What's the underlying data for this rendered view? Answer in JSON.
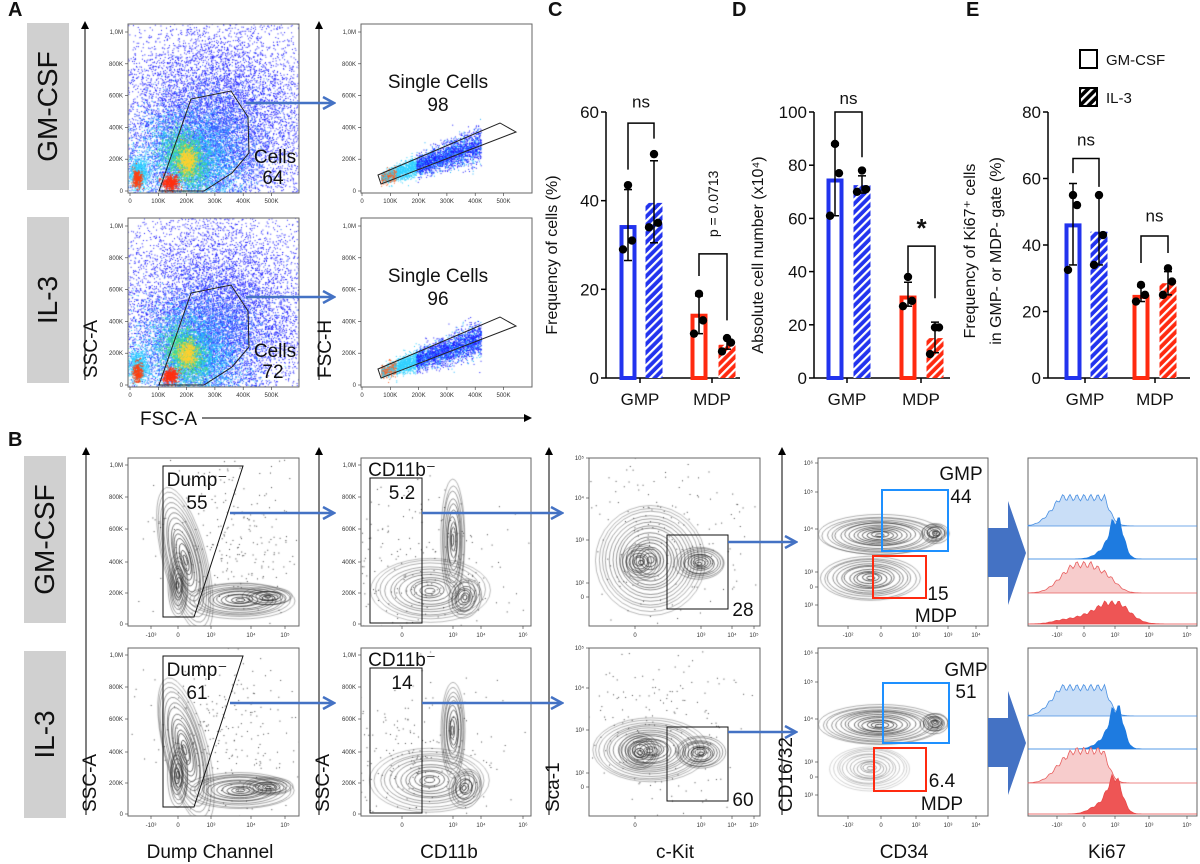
{
  "panel_labels": {
    "a": "A",
    "b": "B",
    "c": "C",
    "d": "D",
    "e": "E"
  },
  "conditions": [
    "GM-CSF",
    "IL-3"
  ],
  "colors": {
    "gmp": "#2233ee",
    "mdp": "#ff2a10",
    "gate_gmp": "#1e90ff",
    "gate_mdp": "#ff2a10",
    "arrow": "#4472c4",
    "condition_box": "#d0d0d0"
  },
  "panel_a": {
    "axis_labels": {
      "y1": "SSC-A",
      "y2": "FSC-H",
      "x": "FSC-A"
    },
    "x_ticks": [
      "0",
      "100K",
      "200K",
      "300K",
      "400K",
      "500K"
    ],
    "y_ticks": [
      "0",
      "200K",
      "400K",
      "600K",
      "800K",
      "1,0M"
    ],
    "rows": [
      {
        "cells_label": "Cells",
        "cells_value": "64",
        "single_label": "Single Cells",
        "single_value": "98"
      },
      {
        "cells_label": "Cells",
        "cells_value": "72",
        "single_label": "Single Cells",
        "single_value": "96"
      }
    ]
  },
  "panel_b": {
    "axis_labels": {
      "p1_y": "SSC-A",
      "p1_x": "Dump Channel",
      "p2_y": "SSC-A",
      "p2_x": "CD11b",
      "p3_y": "Sca-1",
      "p3_x": "c-Kit",
      "p4_y": "CD16/32",
      "p4_x": "CD34",
      "p5_x": "Ki67"
    },
    "ticks": {
      "p1_x": [
        "-10³",
        "0",
        "10³",
        "10⁴",
        "10⁵"
      ],
      "lin_y": [
        "0",
        "200K",
        "400K",
        "600K",
        "800K",
        "1,0M"
      ],
      "p2_x": [
        "0",
        "10³",
        "10⁴",
        "10⁶"
      ],
      "p3_x": [
        "0",
        "10³",
        "10⁴",
        "10⁵"
      ],
      "p3_y": [
        "0",
        "10²",
        "10³",
        "10⁴",
        "10⁵"
      ],
      "p4_x": [
        "-10²",
        "0",
        "10²",
        "10³",
        "10⁴"
      ],
      "p4_y": [
        "10³",
        "0",
        "10³",
        "10⁴",
        "10⁵",
        "10⁶"
      ],
      "p5_x": [
        "-10²",
        "0",
        "10²",
        "10³",
        "10⁵"
      ]
    },
    "rows": [
      {
        "dump_label": "Dump⁻",
        "dump_value": "55",
        "cd11b_label": "CD11b⁻",
        "cd11b_value": "5.2",
        "ckit_value": "28",
        "gmp_label": "GMP",
        "gmp_value": "44",
        "mdp_label": "MDP",
        "mdp_value": "15"
      },
      {
        "dump_label": "Dump⁻",
        "dump_value": "61",
        "cd11b_label": "CD11b⁻",
        "cd11b_value": "14",
        "ckit_value": "60",
        "gmp_label": "GMP",
        "gmp_value": "51",
        "mdp_label": "MDP",
        "mdp_value": "6.4"
      }
    ]
  },
  "legend": [
    {
      "label": "GM-CSF",
      "style": "open"
    },
    {
      "label": "IL-3",
      "style": "hatched"
    }
  ],
  "chart_data": [
    {
      "panel": "C",
      "type": "bar",
      "categories": [
        "GMP",
        "MDP"
      ],
      "ylabel": "Frequency of cells (%)",
      "ylim": [
        0,
        60
      ],
      "yticks": [
        "0",
        "20",
        "40",
        "60"
      ],
      "series": [
        {
          "name": "GM-CSF",
          "values": [
            34.5,
            14.5
          ],
          "error": [
            [
              26.5,
              42.5
            ],
            [
              10,
              18.5
            ]
          ],
          "points": [
            [
              29,
              31,
              43.5
            ],
            [
              10,
              13,
              19
            ]
          ]
        },
        {
          "name": "IL-3",
          "values": [
            39.5,
            7.5
          ],
          "error": [
            [
              30.5,
              49
            ],
            [
              6.5,
              9
            ]
          ],
          "points": [
            [
              34,
              35,
              50.5
            ],
            [
              6,
              8,
              9
            ]
          ]
        }
      ],
      "annotations": [
        {
          "group": "GMP",
          "text": "ns"
        },
        {
          "group": "MDP",
          "text": "p = 0.0713"
        }
      ]
    },
    {
      "panel": "D",
      "type": "bar",
      "categories": [
        "GMP",
        "MDP"
      ],
      "ylabel": "Absolute cell number  (x10⁴)",
      "ylim": [
        0,
        100
      ],
      "yticks": [
        "0",
        "20",
        "40",
        "60",
        "80",
        "100"
      ],
      "series": [
        {
          "name": "GM-CSF",
          "values": [
            75,
            31
          ],
          "error": [
            [
              61,
              87.5
            ],
            [
              27,
              36
            ]
          ],
          "points": [
            [
              61,
              77,
              88
            ],
            [
              27,
              29,
              38
            ]
          ]
        },
        {
          "name": "IL-3",
          "values": [
            72.5,
            15
          ],
          "error": [
            [
              69.5,
              76
            ],
            [
              9.5,
              21
            ]
          ],
          "points": [
            [
              70,
              71,
              78
            ],
            [
              9,
              19,
              19
            ]
          ]
        }
      ],
      "annotations": [
        {
          "group": "GMP",
          "text": "ns"
        },
        {
          "group": "MDP",
          "text": "*"
        }
      ]
    },
    {
      "panel": "E",
      "type": "bar",
      "categories": [
        "GMP",
        "MDP"
      ],
      "ylabel": [
        "Frequency of Ki67⁺ cells",
        "in GMP- or MDP- gate (%)"
      ],
      "ylim": [
        0,
        80
      ],
      "yticks": [
        "0",
        "20",
        "40",
        "60",
        "80"
      ],
      "series": [
        {
          "name": "GM-CSF",
          "values": [
            46.5,
            25
          ],
          "error": [
            [
              34,
              58.5
            ],
            [
              23,
              27.5
            ]
          ],
          "points": [
            [
              32.5,
              52,
              55
            ],
            [
              23,
              25,
              28
            ]
          ]
        },
        {
          "name": "IL-3",
          "values": [
            44,
            28.5
          ],
          "error": [
            [
              34,
              55
            ],
            [
              25,
              32
            ]
          ],
          "points": [
            [
              34,
              43,
              55
            ],
            [
              25,
              29,
              33
            ]
          ]
        }
      ],
      "annotations": [
        {
          "group": "GMP",
          "text": "ns"
        },
        {
          "group": "MDP",
          "text": "ns"
        }
      ]
    }
  ]
}
